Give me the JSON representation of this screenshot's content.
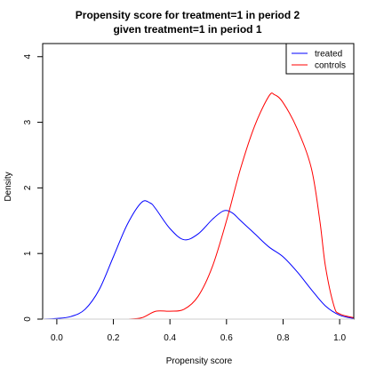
{
  "chart_data": {
    "type": "line",
    "title": "Propensity score for treatment=1 in period 2",
    "subtitle": "given treatment=1 in period 1",
    "xlabel": "Propensity score",
    "ylabel": "Density",
    "xlim": [
      -0.05,
      1.05
    ],
    "ylim": [
      0,
      4.2
    ],
    "x_ticks": [
      0.0,
      0.2,
      0.4,
      0.6,
      0.8,
      1.0
    ],
    "x_tick_labels": [
      "0.0",
      "0.2",
      "0.4",
      "0.6",
      "0.8",
      "1.0"
    ],
    "y_ticks": [
      0,
      1,
      2,
      3,
      4
    ],
    "y_tick_labels": [
      "0",
      "1",
      "2",
      "3",
      "4"
    ],
    "grid": false,
    "legend": {
      "position": "top-right",
      "entries": [
        "treated",
        "controls"
      ]
    },
    "series": [
      {
        "name": "treated",
        "color": "#0000ff",
        "points": [
          [
            -0.05,
            0.0
          ],
          [
            0.0,
            0.01
          ],
          [
            0.05,
            0.04
          ],
          [
            0.1,
            0.15
          ],
          [
            0.15,
            0.45
          ],
          [
            0.2,
            0.95
          ],
          [
            0.25,
            1.45
          ],
          [
            0.3,
            1.78
          ],
          [
            0.33,
            1.77
          ],
          [
            0.35,
            1.68
          ],
          [
            0.4,
            1.38
          ],
          [
            0.45,
            1.21
          ],
          [
            0.5,
            1.3
          ],
          [
            0.55,
            1.52
          ],
          [
            0.59,
            1.65
          ],
          [
            0.62,
            1.62
          ],
          [
            0.65,
            1.5
          ],
          [
            0.7,
            1.3
          ],
          [
            0.75,
            1.1
          ],
          [
            0.8,
            0.95
          ],
          [
            0.85,
            0.72
          ],
          [
            0.9,
            0.45
          ],
          [
            0.95,
            0.2
          ],
          [
            1.0,
            0.06
          ],
          [
            1.05,
            0.01
          ]
        ]
      },
      {
        "name": "controls",
        "color": "#ff0000",
        "points": [
          [
            0.25,
            0.0
          ],
          [
            0.3,
            0.02
          ],
          [
            0.35,
            0.12
          ],
          [
            0.4,
            0.12
          ],
          [
            0.45,
            0.15
          ],
          [
            0.5,
            0.35
          ],
          [
            0.55,
            0.8
          ],
          [
            0.6,
            1.5
          ],
          [
            0.65,
            2.3
          ],
          [
            0.7,
            2.95
          ],
          [
            0.75,
            3.4
          ],
          [
            0.77,
            3.42
          ],
          [
            0.8,
            3.3
          ],
          [
            0.85,
            2.9
          ],
          [
            0.9,
            2.3
          ],
          [
            0.93,
            1.5
          ],
          [
            0.95,
            0.8
          ],
          [
            0.98,
            0.2
          ],
          [
            1.0,
            0.08
          ],
          [
            1.05,
            0.02
          ]
        ]
      }
    ]
  }
}
